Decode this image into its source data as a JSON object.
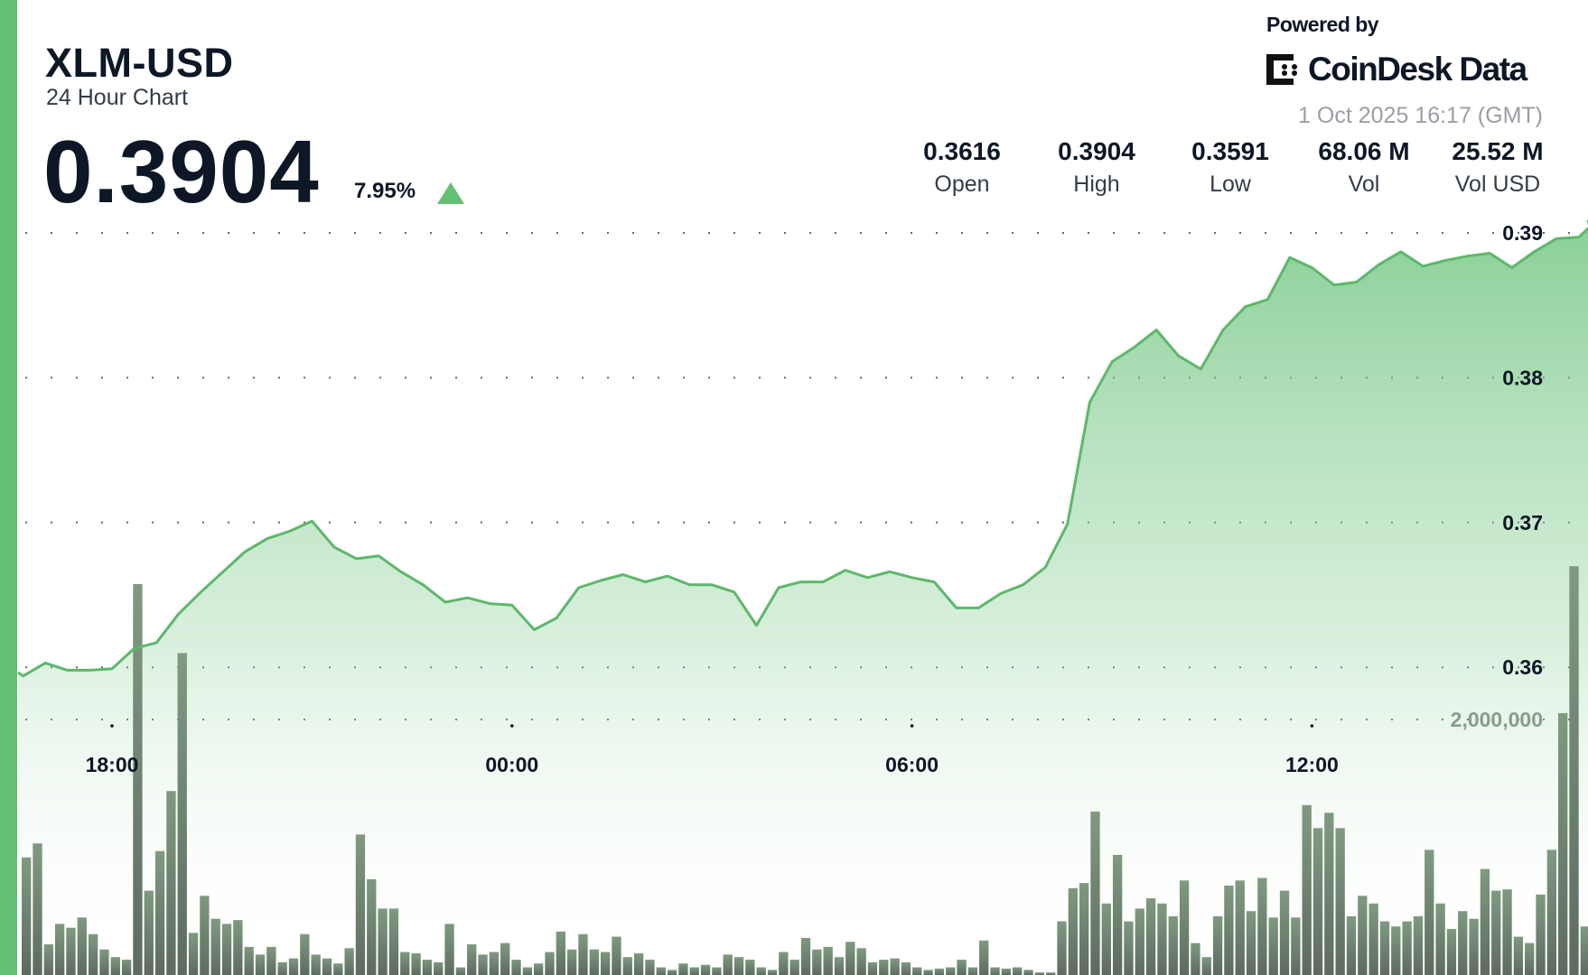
{
  "header": {
    "title": "XLM-USD",
    "subtitle": "24 Hour Chart",
    "price": "0.3904",
    "change": "7.95%",
    "change_direction": "up",
    "powered_by": "Powered by",
    "brand": "CoinDesk Data",
    "timestamp": "1 Oct 2025 16:17 (GMT)"
  },
  "stats": [
    {
      "value": "0.3616",
      "label": "Open"
    },
    {
      "value": "0.3904",
      "label": "High"
    },
    {
      "value": "0.3591",
      "label": "Low"
    },
    {
      "value": "68.06 M",
      "label": "Vol"
    },
    {
      "value": "25.52 M",
      "label": "Vol USD"
    }
  ],
  "colors": {
    "accent": "#62bf74",
    "line": "#5cb86a",
    "volume": "#66756a",
    "text": "#0d1726"
  },
  "chart_data": {
    "type": "area",
    "grid": "dotted horizontal",
    "y_ticks": [
      "0.39",
      "0.38",
      "0.37",
      "0.36"
    ],
    "x_ticks": [
      "18:00",
      "00:00",
      "06:00",
      "12:00"
    ],
    "volume_ticks": [
      "2,000,000"
    ],
    "ylim": [
      0.3555,
      0.3918
    ],
    "price": [
      [
        "16:40",
        0.3594
      ],
      [
        "17:00",
        0.3603
      ],
      [
        "17:20",
        0.3598
      ],
      [
        "17:40",
        0.3598
      ],
      [
        "18:00",
        0.3599
      ],
      [
        "18:20",
        0.3613
      ],
      [
        "18:40",
        0.3617
      ],
      [
        "19:00",
        0.3637
      ],
      [
        "19:20",
        0.3652
      ],
      [
        "19:40",
        0.3666
      ],
      [
        "20:00",
        0.368
      ],
      [
        "20:20",
        0.3689
      ],
      [
        "20:40",
        0.3694
      ],
      [
        "21:00",
        0.3701
      ],
      [
        "21:20",
        0.3683
      ],
      [
        "21:40",
        0.3675
      ],
      [
        "22:00",
        0.3677
      ],
      [
        "22:20",
        0.3666
      ],
      [
        "22:40",
        0.3657
      ],
      [
        "23:00",
        0.3645
      ],
      [
        "23:20",
        0.3648
      ],
      [
        "23:40",
        0.3644
      ],
      [
        "00:00",
        0.3643
      ],
      [
        "00:20",
        0.3626
      ],
      [
        "00:40",
        0.3634
      ],
      [
        "01:00",
        0.3655
      ],
      [
        "01:20",
        0.366
      ],
      [
        "01:40",
        0.3664
      ],
      [
        "02:00",
        0.3659
      ],
      [
        "02:20",
        0.3663
      ],
      [
        "02:40",
        0.3657
      ],
      [
        "03:00",
        0.3657
      ],
      [
        "03:20",
        0.3652
      ],
      [
        "03:40",
        0.3629
      ],
      [
        "04:00",
        0.3655
      ],
      [
        "04:20",
        0.3659
      ],
      [
        "04:40",
        0.3659
      ],
      [
        "05:00",
        0.3667
      ],
      [
        "05:20",
        0.3662
      ],
      [
        "05:40",
        0.3666
      ],
      [
        "06:00",
        0.3662
      ],
      [
        "06:20",
        0.3659
      ],
      [
        "06:40",
        0.3641
      ],
      [
        "07:00",
        0.3641
      ],
      [
        "07:20",
        0.3651
      ],
      [
        "07:40",
        0.3657
      ],
      [
        "08:00",
        0.3669
      ],
      [
        "08:20",
        0.3699
      ],
      [
        "08:40",
        0.3783
      ],
      [
        "09:00",
        0.3811
      ],
      [
        "09:20",
        0.3821
      ],
      [
        "09:40",
        0.3833
      ],
      [
        "10:00",
        0.3815
      ],
      [
        "10:20",
        0.3806
      ],
      [
        "10:40",
        0.3833
      ],
      [
        "11:00",
        0.3849
      ],
      [
        "11:20",
        0.3854
      ],
      [
        "11:40",
        0.3883
      ],
      [
        "12:00",
        0.3876
      ],
      [
        "12:20",
        0.3864
      ],
      [
        "12:40",
        0.3866
      ],
      [
        "13:00",
        0.3878
      ],
      [
        "13:20",
        0.3887
      ],
      [
        "13:40",
        0.3877
      ],
      [
        "14:00",
        0.3881
      ],
      [
        "14:20",
        0.3884
      ],
      [
        "14:40",
        0.3886
      ],
      [
        "15:00",
        0.3876
      ],
      [
        "15:20",
        0.3887
      ],
      [
        "15:40",
        0.3896
      ],
      [
        "16:00",
        0.3897
      ],
      [
        "16:10",
        0.3904
      ]
    ],
    "volume": [
      920000,
      1030000,
      240000,
      400000,
      370000,
      450000,
      320000,
      200000,
      140000,
      120000,
      3060000,
      660000,
      970000,
      1440000,
      2520000,
      330000,
      620000,
      440000,
      400000,
      430000,
      220000,
      160000,
      220000,
      100000,
      130000,
      320000,
      160000,
      130000,
      90000,
      210000,
      1100000,
      750000,
      520000,
      520000,
      180000,
      170000,
      120000,
      100000,
      400000,
      60000,
      240000,
      160000,
      180000,
      250000,
      120000,
      60000,
      90000,
      180000,
      340000,
      200000,
      320000,
      200000,
      180000,
      300000,
      140000,
      170000,
      120000,
      60000,
      40000,
      90000,
      60000,
      80000,
      60000,
      160000,
      140000,
      120000,
      60000,
      40000,
      180000,
      120000,
      290000,
      200000,
      220000,
      140000,
      260000,
      210000,
      100000,
      120000,
      130000,
      100000,
      60000,
      40000,
      50000,
      60000,
      120000,
      60000,
      270000,
      60000,
      50000,
      60000,
      40000,
      20000,
      20000,
      420000,
      680000,
      720000,
      1280000,
      560000,
      940000,
      420000,
      520000,
      600000,
      560000,
      460000,
      740000,
      250000,
      140000,
      460000,
      700000,
      740000,
      500000,
      760000,
      450000,
      660000,
      450000,
      1330000,
      1150000,
      1270000,
      1150000,
      460000,
      620000,
      560000,
      420000,
      380000,
      420000,
      460000,
      980000,
      560000,
      360000,
      500000,
      440000,
      830000,
      660000,
      670000,
      300000,
      250000,
      630000,
      980000,
      2050000,
      3200000,
      380000
    ]
  }
}
